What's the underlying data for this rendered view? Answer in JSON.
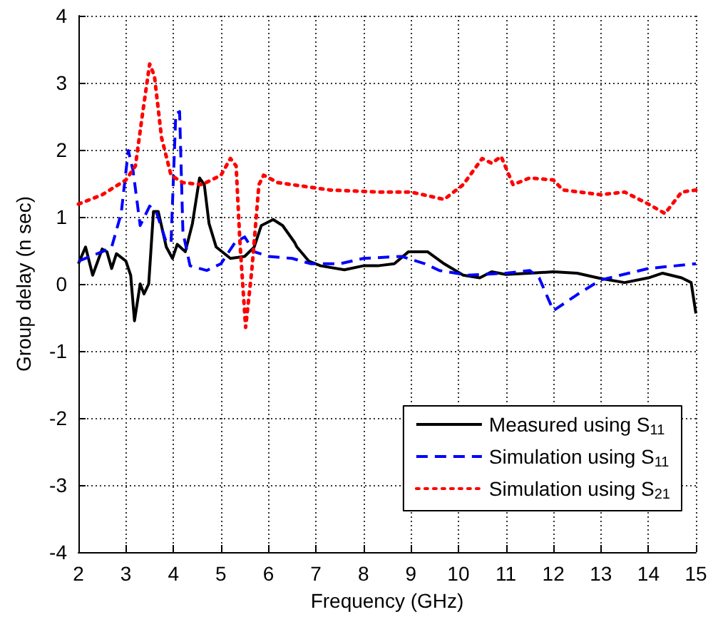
{
  "chart_data": {
    "type": "line",
    "xlabel": "Frequency (GHz)",
    "ylabel": "Group delay (n sec)",
    "xlim": [
      2,
      15
    ],
    "xticks": [
      2,
      3,
      4,
      5,
      6,
      7,
      8,
      9,
      10,
      11,
      12,
      13,
      14,
      15
    ],
    "ylim": [
      -4,
      4
    ],
    "yticks": [
      -4,
      -3,
      -2,
      -1,
      0,
      1,
      2,
      3,
      4
    ],
    "grid": true,
    "legend": "bottom right",
    "marker": "none",
    "series": [
      {
        "name": "Measured using S$_{11}$",
        "color": "#000000",
        "line_style": "solid",
        "x": [
          2,
          2.15,
          2.3,
          2.5,
          2.6,
          2.7,
          2.8,
          3,
          3.1,
          3.18,
          3.3,
          3.38,
          3.48,
          3.58,
          3.68,
          3.85,
          3.98,
          4.08,
          4.25,
          4.4,
          4.55,
          4.65,
          4.75,
          4.9,
          5.2,
          5.5,
          5.7,
          5.85,
          6.1,
          6.3,
          6.55,
          6.6,
          6.85,
          7.1,
          7.6,
          8,
          8.3,
          8.65,
          8.95,
          9.35,
          9.7,
          10.1,
          10.45,
          10.7,
          11,
          11.5,
          12,
          12.5,
          13,
          13.5,
          14,
          14.3,
          14.7,
          14.9,
          15
        ],
        "values": [
          0.3,
          0.55,
          0.13,
          0.52,
          0.48,
          0.23,
          0.45,
          0.34,
          0.13,
          -0.55,
          0,
          -0.15,
          0,
          1.08,
          1.08,
          0.55,
          0.38,
          0.59,
          0.48,
          0.9,
          1.58,
          1.48,
          0.9,
          0.55,
          0.38,
          0.41,
          0.55,
          0.87,
          0.96,
          0.87,
          0.62,
          0.55,
          0.34,
          0.27,
          0.21,
          0.27,
          0.27,
          0.3,
          0.48,
          0.48,
          0.3,
          0.13,
          0.09,
          0.18,
          0.14,
          0.16,
          0.18,
          0.16,
          0.08,
          0.02,
          0.09,
          0.16,
          0.09,
          0.02,
          -0.44
        ]
      },
      {
        "name": "Simulation using S$_{11}$",
        "color": "#0000ff",
        "line_style": "dashed",
        "x": [
          2,
          2.5,
          2.7,
          2.9,
          3.05,
          3.15,
          3.3,
          3.5,
          3.65,
          3.85,
          3.95,
          4.05,
          4.13,
          4.2,
          4.35,
          4.7,
          5,
          5.3,
          5.5,
          5.7,
          6,
          6.5,
          6.9,
          7.5,
          8,
          8.8,
          9.3,
          9.6,
          10.2,
          11,
          11.5,
          11.7,
          12,
          12.5,
          13,
          14,
          15
        ],
        "values": [
          0.34,
          0.48,
          0.55,
          1.05,
          1.99,
          1.69,
          0.87,
          1.16,
          1.05,
          0.62,
          0.62,
          2.54,
          2.57,
          0.77,
          0.27,
          0.2,
          0.3,
          0.62,
          0.7,
          0.48,
          0.41,
          0.38,
          0.3,
          0.3,
          0.38,
          0.41,
          0.3,
          0.2,
          0.13,
          0.16,
          0.2,
          0.09,
          -0.4,
          -0.16,
          0.06,
          0.23,
          0.3
        ]
      },
      {
        "name": "Simulation using S$_{21}$",
        "color": "#ff0000",
        "line_style": "dotted",
        "x": [
          2,
          2.5,
          3,
          3.2,
          3.35,
          3.5,
          3.6,
          3.75,
          3.95,
          4.2,
          4.6,
          5,
          5.2,
          5.32,
          5.4,
          5.52,
          5.65,
          5.8,
          5.9,
          6.2,
          7.3,
          8.3,
          9,
          9.7,
          10.1,
          10.5,
          10.7,
          10.9,
          11.15,
          11.5,
          12,
          12.2,
          13,
          13.5,
          14,
          14.35,
          14.7,
          15
        ],
        "values": [
          1.19,
          1.33,
          1.55,
          1.76,
          2.54,
          3.28,
          3.1,
          2.18,
          1.62,
          1.51,
          1.48,
          1.62,
          1.87,
          1.76,
          0.62,
          -0.65,
          0.2,
          1.48,
          1.62,
          1.51,
          1.4,
          1.37,
          1.37,
          1.26,
          1.48,
          1.87,
          1.8,
          1.9,
          1.48,
          1.58,
          1.55,
          1.4,
          1.33,
          1.37,
          1.19,
          1.05,
          1.37,
          1.4
        ]
      }
    ]
  }
}
